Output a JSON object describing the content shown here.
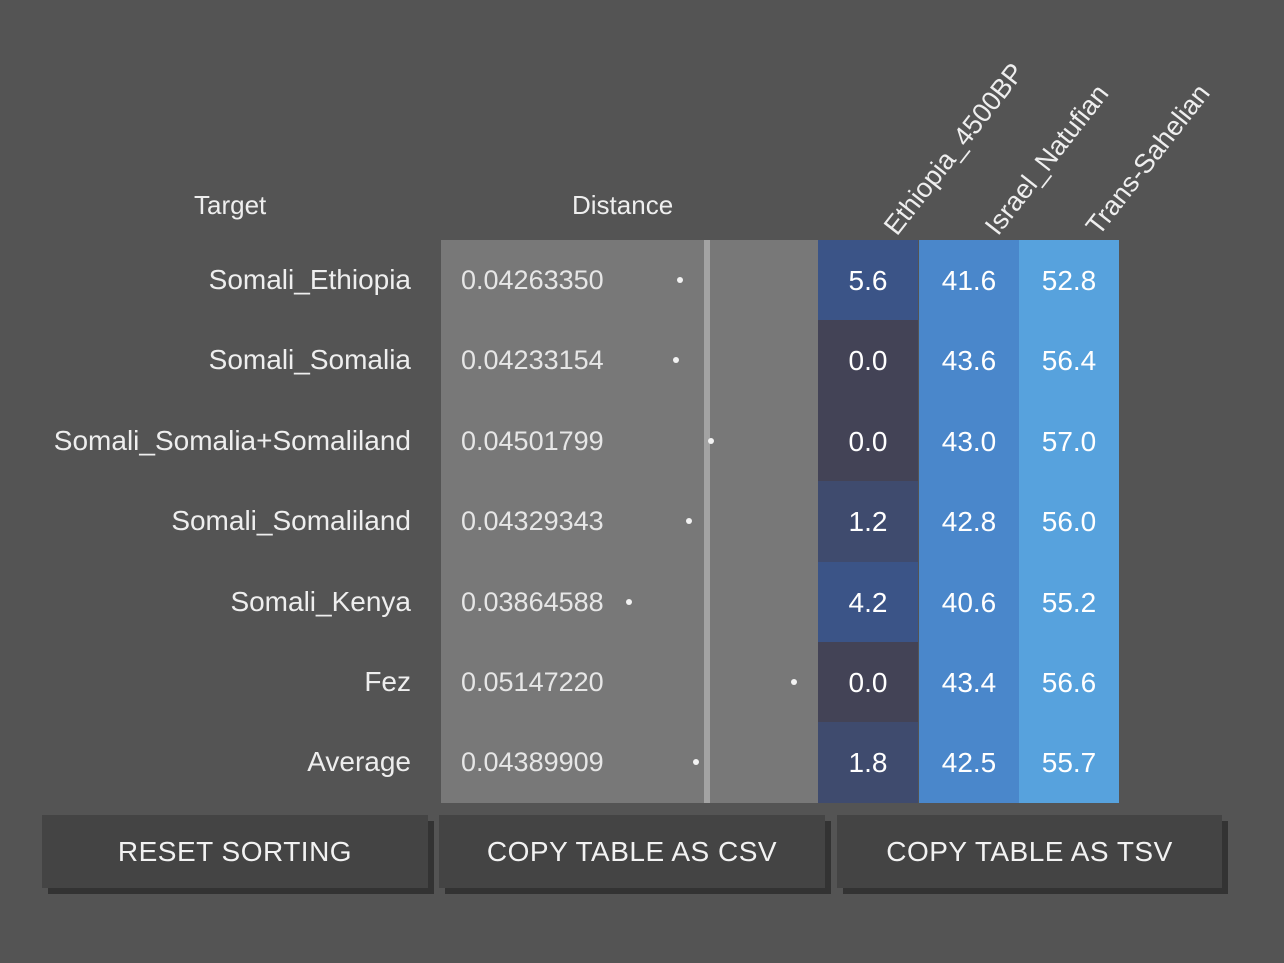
{
  "table": {
    "headers": {
      "target": "Target",
      "distance": "Distance",
      "sources": [
        "Ethiopia_4500BP",
        "Israel_Natufian",
        "Trans-Sahelian"
      ]
    },
    "rows": [
      {
        "target": "Somali_Ethiopia",
        "distance": "0.04263350",
        "values": [
          "5.6",
          "41.6",
          "52.8"
        ]
      },
      {
        "target": "Somali_Somalia",
        "distance": "0.04233154",
        "values": [
          "0.0",
          "43.6",
          "56.4"
        ]
      },
      {
        "target": "Somali_Somalia+Somaliland",
        "distance": "0.04501799",
        "values": [
          "0.0",
          "43.0",
          "57.0"
        ]
      },
      {
        "target": "Somali_Somaliland",
        "distance": "0.04329343",
        "values": [
          "1.2",
          "42.8",
          "56.0"
        ]
      },
      {
        "target": "Somali_Kenya",
        "distance": "0.03864588",
        "values": [
          "4.2",
          "40.6",
          "55.2"
        ]
      },
      {
        "target": "Fez",
        "distance": "0.05147220",
        "values": [
          "0.0",
          "43.4",
          "56.6"
        ]
      },
      {
        "target": "Average",
        "distance": "0.04389909",
        "values": [
          "1.8",
          "42.5",
          "55.7"
        ]
      }
    ]
  },
  "buttons": {
    "reset": "RESET SORTING",
    "csv": "COPY TABLE AS CSV",
    "tsv": "COPY TABLE AS TSV"
  },
  "colors": {
    "background": "#545454",
    "distance_panel": "#787878",
    "ethiopia_zero": "#434356",
    "ethiopia_low": "#3f4b6e",
    "ethiopia_high": "#3b5487",
    "israel": "#4a87cb",
    "trans_sahelian": "#57a2dd",
    "button": "#444444"
  }
}
